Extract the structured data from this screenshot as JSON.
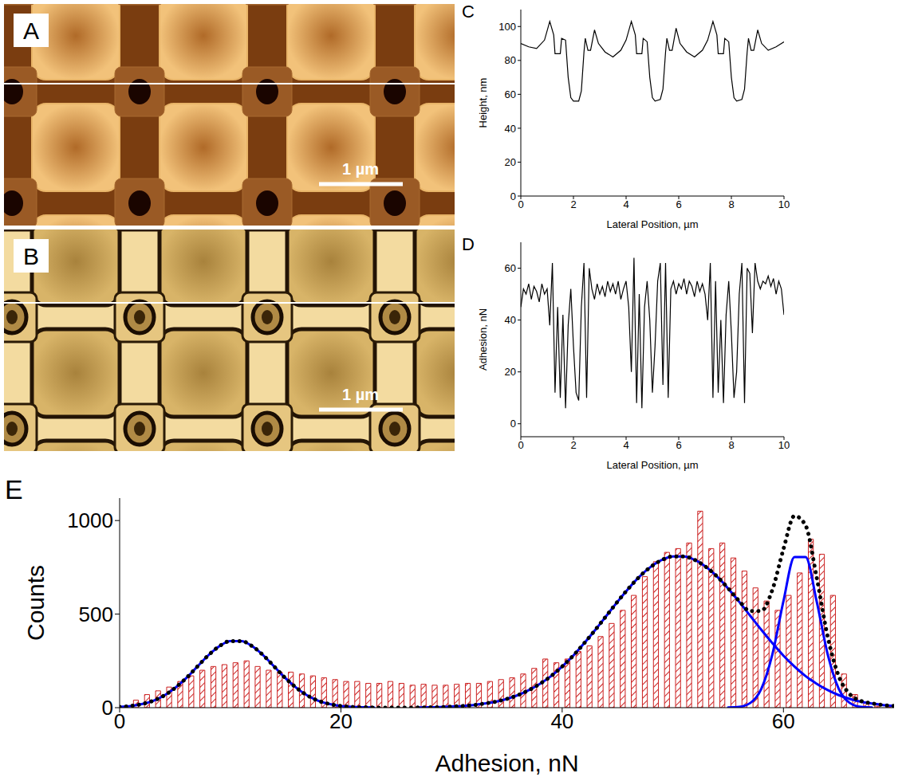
{
  "images": [
    {
      "panel": "A",
      "scale_bar": "1 µm"
    },
    {
      "panel": "B",
      "scale_bar": "1 µm"
    }
  ],
  "chart_data": [
    {
      "type": "line",
      "panel": "C",
      "x_label": "Lateral Position, µm",
      "y_label": "Height, nm",
      "color": "#000000",
      "line_style": "solid",
      "x": [
        0,
        0.3,
        0.6,
        0.9,
        1.1,
        1.25,
        1.3,
        1.5,
        1.55,
        1.7,
        1.8,
        1.9,
        2.0,
        2.2,
        2.3,
        2.4,
        2.45,
        2.55,
        2.65,
        2.8,
        2.95,
        3.2,
        3.5,
        3.8,
        4.0,
        4.2,
        4.35,
        4.4,
        4.6,
        4.65,
        4.8,
        4.9,
        5.0,
        5.1,
        5.3,
        5.4,
        5.5,
        5.55,
        5.65,
        5.75,
        5.9,
        6.05,
        6.3,
        6.6,
        6.9,
        7.1,
        7.3,
        7.45,
        7.5,
        7.7,
        7.75,
        7.9,
        8.0,
        8.1,
        8.2,
        8.4,
        8.5,
        8.6,
        8.65,
        8.75,
        8.85,
        9.0,
        9.15,
        9.4,
        9.7,
        10
      ],
      "values": [
        90,
        88,
        87,
        92,
        103,
        95,
        84,
        84,
        93,
        92,
        70,
        58,
        56,
        56,
        62,
        85,
        93,
        86,
        86,
        98,
        90,
        85,
        82,
        86,
        92,
        103,
        95,
        84,
        84,
        93,
        91,
        70,
        58,
        56,
        57,
        63,
        85,
        93,
        86,
        86,
        99,
        90,
        85,
        82,
        86,
        92,
        103,
        95,
        84,
        84,
        93,
        91,
        70,
        58,
        56,
        57,
        63,
        85,
        93,
        86,
        86,
        98,
        90,
        86,
        88,
        91
      ],
      "xlim": [
        0,
        10
      ],
      "xticks": [
        0,
        2,
        4,
        6,
        8,
        10
      ],
      "ylim": [
        0,
        110
      ],
      "yticks": [
        0,
        20,
        40,
        60,
        80,
        100
      ]
    },
    {
      "type": "line",
      "panel": "D",
      "x_label": "Lateral Position, µm",
      "y_label": "Adhesion, nN",
      "color": "#000000",
      "line_style": "solid",
      "x": [
        0,
        0.1,
        0.2,
        0.3,
        0.4,
        0.5,
        0.6,
        0.7,
        0.8,
        0.9,
        1,
        1.1,
        1.2,
        1.3,
        1.4,
        1.5,
        1.6,
        1.7,
        1.8,
        1.9,
        2,
        2.1,
        2.2,
        2.3,
        2.4,
        2.5,
        2.6,
        2.7,
        2.8,
        2.9,
        3,
        3.1,
        3.2,
        3.3,
        3.4,
        3.5,
        3.6,
        3.7,
        3.8,
        3.9,
        4,
        4.1,
        4.2,
        4.3,
        4.4,
        4.5,
        4.6,
        4.7,
        4.8,
        4.9,
        5,
        5.1,
        5.2,
        5.3,
        5.4,
        5.5,
        5.6,
        5.7,
        5.8,
        5.9,
        6,
        6.1,
        6.2,
        6.3,
        6.4,
        6.5,
        6.6,
        6.7,
        6.8,
        6.9,
        7,
        7.1,
        7.2,
        7.3,
        7.4,
        7.5,
        7.6,
        7.7,
        7.8,
        7.9,
        8,
        8.1,
        8.2,
        8.3,
        8.4,
        8.5,
        8.6,
        8.7,
        8.8,
        8.9,
        9,
        9.1,
        9.2,
        9.3,
        9.4,
        9.5,
        9.6,
        9.7,
        9.8,
        9.9,
        10
      ],
      "values": [
        45,
        52,
        50,
        54,
        48,
        53,
        51,
        47,
        54,
        50,
        52,
        38,
        62,
        12,
        45,
        10,
        42,
        6,
        38,
        52,
        30,
        12,
        9,
        45,
        62,
        10,
        60,
        52,
        48,
        54,
        50,
        53,
        49,
        55,
        51,
        54,
        50,
        55,
        48,
        52,
        55,
        45,
        20,
        64,
        8,
        50,
        6,
        45,
        55,
        40,
        12,
        30,
        55,
        62,
        15,
        62,
        10,
        52,
        55,
        50,
        54,
        52,
        56,
        50,
        55,
        53,
        49,
        55,
        51,
        54,
        50,
        40,
        62,
        10,
        55,
        12,
        40,
        8,
        42,
        55,
        35,
        10,
        20,
        50,
        62,
        8,
        60,
        58,
        35,
        62,
        55,
        52,
        55,
        54,
        57,
        53,
        56,
        50,
        55,
        52,
        42
      ],
      "xlim": [
        0,
        10
      ],
      "xticks": [
        0,
        2,
        4,
        6,
        8,
        10
      ],
      "ylim": [
        -5,
        70
      ],
      "yticks": [
        0,
        20,
        40,
        60
      ]
    },
    {
      "type": "histogram",
      "panel": "E",
      "x_label": "Adhesion, nN",
      "y_label": "Counts",
      "color": "#cc2222",
      "bins": [
        1,
        2,
        3,
        4,
        5,
        6,
        7,
        8,
        9,
        10,
        11,
        12,
        13,
        14,
        15,
        16,
        17,
        18,
        19,
        20,
        21,
        22,
        23,
        24,
        25,
        26,
        27,
        28,
        29,
        30,
        31,
        32,
        33,
        34,
        35,
        36,
        37,
        38,
        39,
        40,
        41,
        42,
        43,
        44,
        45,
        46,
        47,
        48,
        49,
        50,
        51,
        52,
        53,
        54,
        55,
        56,
        57,
        58,
        59,
        60,
        61,
        62,
        63,
        64,
        65,
        66,
        67,
        68,
        69,
        70
      ],
      "values": [
        40,
        70,
        90,
        110,
        140,
        170,
        200,
        220,
        230,
        240,
        250,
        220,
        200,
        190,
        190,
        180,
        170,
        160,
        150,
        140,
        140,
        130,
        130,
        140,
        130,
        120,
        125,
        120,
        120,
        125,
        130,
        130,
        140,
        150,
        160,
        180,
        210,
        260,
        240,
        260,
        300,
        330,
        380,
        450,
        520,
        600,
        700,
        780,
        830,
        850,
        880,
        1050,
        850,
        880,
        800,
        730,
        640,
        570,
        520,
        600,
        720,
        900,
        820,
        600,
        180,
        70,
        25,
        8,
        3
      ],
      "xlim": [
        0,
        70
      ],
      "xticks": [
        0,
        20,
        40,
        60
      ],
      "ylim": [
        0,
        1120
      ],
      "yticks": [
        0,
        500,
        1000
      ],
      "series": [
        {
          "type": "line",
          "color": "#0000ff",
          "line_style": "solid",
          "x": [
            0,
            1,
            2,
            3,
            4,
            5,
            6,
            7,
            8,
            9,
            10,
            11,
            12,
            13,
            14,
            15,
            16,
            17,
            18,
            19,
            20,
            21,
            22,
            23
          ],
          "values": [
            4,
            9,
            19,
            36,
            64,
            105,
            157,
            218,
            279,
            328,
            356,
            356,
            328,
            279,
            218,
            157,
            105,
            64,
            36,
            19,
            9,
            4,
            2,
            1
          ]
        },
        {
          "type": "line",
          "color": "#0000ff",
          "line_style": "solid",
          "x": [
            27,
            28,
            29,
            30,
            31,
            32,
            33,
            34,
            35,
            36,
            37,
            38,
            39,
            40,
            41,
            42,
            43,
            44,
            45,
            46,
            47,
            48,
            49,
            50,
            51,
            52,
            53,
            54,
            55,
            56,
            57,
            58,
            59,
            60,
            61,
            62,
            63,
            64,
            65,
            66,
            67,
            68,
            69,
            70
          ],
          "values": [
            1,
            2,
            3,
            6,
            9,
            14,
            22,
            32,
            47,
            67,
            94,
            128,
            169,
            220,
            278,
            345,
            416,
            491,
            566,
            637,
            701,
            752,
            789,
            808,
            808,
            789,
            752,
            701,
            637,
            566,
            491,
            416,
            345,
            278,
            220,
            169,
            128,
            94,
            67,
            47,
            32,
            22,
            14,
            9
          ]
        },
        {
          "type": "line",
          "color": "#0000ff",
          "line_style": "solid",
          "x": [
            55,
            56,
            57,
            58,
            59,
            60,
            61,
            62,
            63,
            64,
            65,
            66,
            67,
            68
          ],
          "values": [
            1,
            4,
            25,
            101,
            285,
            569,
            805,
            805,
            569,
            285,
            101,
            25,
            4,
            1
          ]
        },
        {
          "type": "line",
          "color": "#000000",
          "line_style": "dotted",
          "x": [
            0,
            1,
            2,
            3,
            4,
            5,
            6,
            7,
            8,
            9,
            10,
            11,
            12,
            13,
            14,
            15,
            16,
            17,
            18,
            19,
            20,
            21,
            22,
            23,
            24,
            25,
            26,
            27,
            28,
            29,
            30,
            31,
            32,
            33,
            34,
            35,
            36,
            37,
            38,
            39,
            40,
            41,
            42,
            43,
            44,
            45,
            46,
            47,
            48,
            49,
            50,
            51,
            52,
            53,
            54,
            55,
            56,
            57,
            58,
            59,
            60,
            61,
            62,
            63,
            64,
            65,
            66,
            67,
            68,
            69,
            70
          ],
          "values": [
            4,
            9,
            19,
            36,
            64,
            105,
            157,
            218,
            279,
            328,
            356,
            356,
            328,
            279,
            218,
            157,
            105,
            64,
            36,
            19,
            9,
            4,
            2,
            1,
            0,
            0,
            0,
            1,
            2,
            3,
            6,
            9,
            14,
            22,
            32,
            47,
            67,
            94,
            128,
            169,
            220,
            278,
            345,
            416,
            491,
            566,
            637,
            701,
            752,
            789,
            808,
            808,
            789,
            752,
            701,
            638,
            570,
            516,
            517,
            630,
            847,
            1025,
            974,
            697,
            379,
            168,
            72,
            36,
            23,
            14,
            9
          ]
        }
      ]
    }
  ]
}
